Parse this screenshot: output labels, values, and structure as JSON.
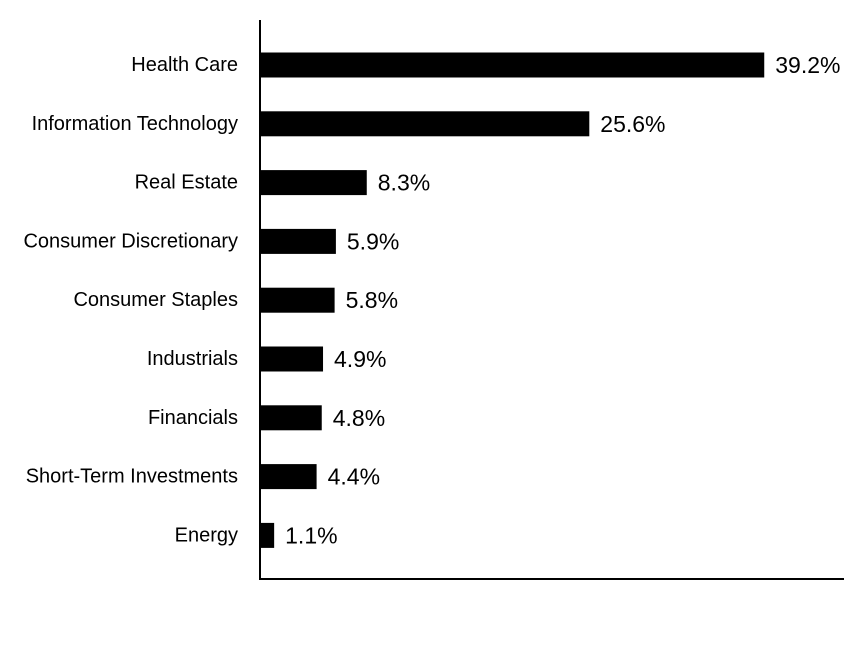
{
  "chart_data": {
    "type": "bar",
    "orientation": "horizontal",
    "categories": [
      "Health Care",
      "Information Technology",
      "Real Estate",
      "Consumer Discretionary",
      "Consumer Staples",
      "Industrials",
      "Financials",
      "Short-Term Investments",
      "Energy"
    ],
    "values": [
      39.2,
      25.6,
      8.3,
      5.9,
      5.8,
      4.9,
      4.8,
      4.4,
      1.1
    ],
    "value_labels": [
      "39.2%",
      "25.6%",
      "8.3%",
      "5.9%",
      "5.8%",
      "4.9%",
      "4.8%",
      "4.4%",
      "1.1%"
    ],
    "value_unit": "%",
    "title": "",
    "xlabel": "",
    "ylabel": "",
    "xlim": [
      0,
      45.4
    ],
    "grid": false,
    "legend": "none",
    "bar_color": "#000000",
    "axis_color": "#000000"
  }
}
